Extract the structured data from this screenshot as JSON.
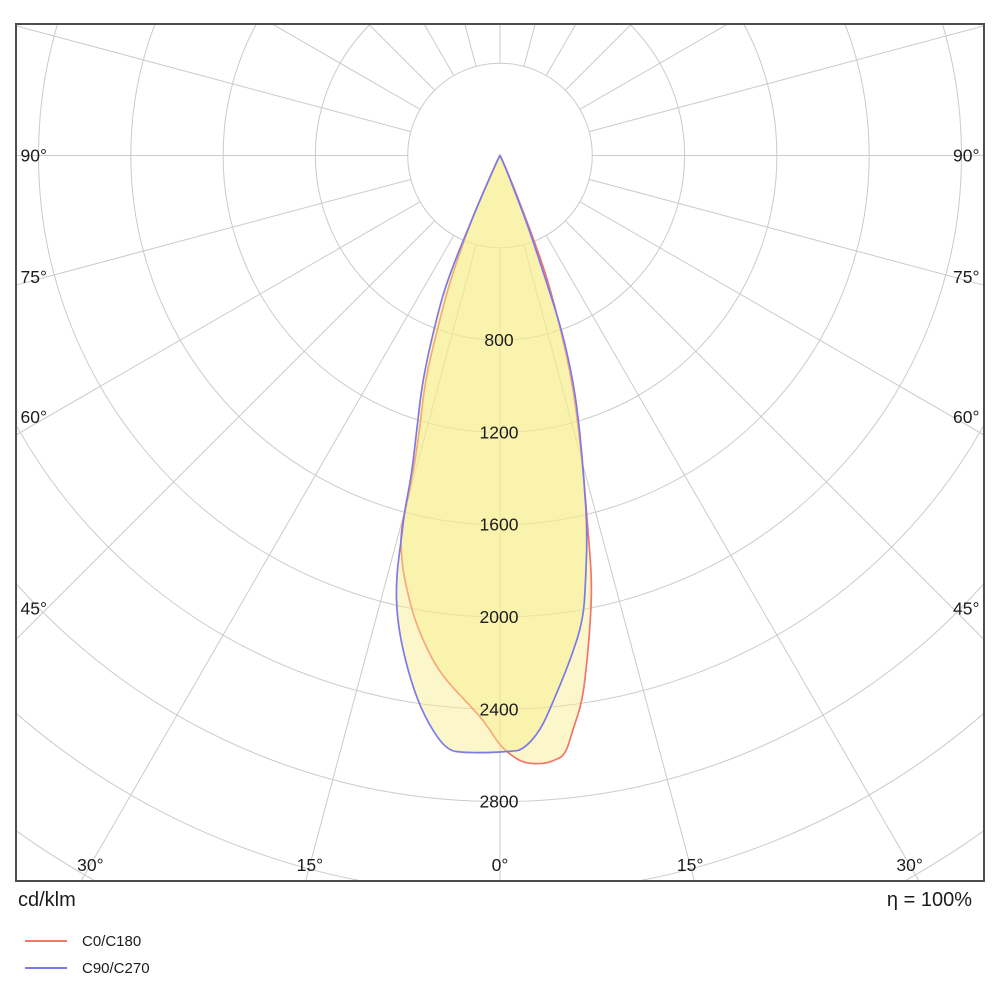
{
  "footer": {
    "unit": "cd/klm",
    "efficiency": "η = 100%"
  },
  "legend": {
    "items": [
      {
        "label": "C0/C180",
        "color": "#f4756b"
      },
      {
        "label": "C90/C270",
        "color": "#7c7ae8"
      }
    ]
  },
  "chart_data": {
    "type": "polar",
    "title": "",
    "units": "cd/klm",
    "efficiency": "η = 100%",
    "angle_step_deg": 15,
    "ring_step": 400,
    "max_ring": 3600,
    "labeled_rings": [
      "800",
      "1200",
      "1600",
      "2000",
      "2400",
      "2800"
    ],
    "side_angle_labels": [
      {
        "deg": 90,
        "label": "90°"
      },
      {
        "deg": 75,
        "label": "75°"
      },
      {
        "deg": 60,
        "label": "60°"
      },
      {
        "deg": 45,
        "label": "45°"
      }
    ],
    "bottom_angle_labels": [
      {
        "deg": -30,
        "label": "30°"
      },
      {
        "deg": -15,
        "label": "15°"
      },
      {
        "deg": 0,
        "label": "0°"
      },
      {
        "deg": 15,
        "label": "15°"
      },
      {
        "deg": 30,
        "label": "30°"
      }
    ],
    "colors": {
      "grid": "#cbcbcb",
      "frame": "#4d4d4d",
      "fill": "rgba(246,238,140,0.45)",
      "text": "#1c1c1c",
      "c0": "#f4756b",
      "c90": "#7c7ae8"
    },
    "series": [
      {
        "name": "C0/C180",
        "color": "#f4756b",
        "points": [
          [
            -90,
            0
          ],
          [
            -75,
            0
          ],
          [
            -60,
            0
          ],
          [
            -45,
            0
          ],
          [
            -34,
            0
          ],
          [
            -30,
            8
          ],
          [
            -27,
            25
          ],
          [
            -25,
            95
          ],
          [
            -24,
            300
          ],
          [
            -21.8,
            585
          ],
          [
            -19.8,
            805
          ],
          [
            -18.4,
            1030
          ],
          [
            -16.3,
            1240
          ],
          [
            -15.1,
            1480
          ],
          [
            -14.9,
            1680
          ],
          [
            -13.6,
            1810
          ],
          [
            -12.6,
            1890
          ],
          [
            -10.4,
            2050
          ],
          [
            -7.6,
            2210
          ],
          [
            -5.5,
            2300
          ],
          [
            -3.7,
            2365
          ],
          [
            -2,
            2435
          ],
          [
            -1,
            2490
          ],
          [
            0,
            2557
          ],
          [
            1.2,
            2605
          ],
          [
            2.4,
            2637
          ],
          [
            4.2,
            2643
          ],
          [
            5,
            2633
          ],
          [
            6.2,
            2615
          ],
          [
            7.2,
            2512
          ],
          [
            8.6,
            2390
          ],
          [
            9.8,
            2220
          ],
          [
            11,
            2055
          ],
          [
            12.2,
            1885
          ],
          [
            13.2,
            1670
          ],
          [
            14.5,
            1455
          ],
          [
            16,
            1240
          ],
          [
            17.7,
            1025
          ],
          [
            19.2,
            805
          ],
          [
            21,
            580
          ],
          [
            22,
            380
          ],
          [
            23,
            180
          ],
          [
            24.5,
            70
          ],
          [
            26.5,
            15
          ],
          [
            30,
            0
          ],
          [
            45,
            0
          ],
          [
            60,
            0
          ],
          [
            75,
            0
          ],
          [
            90,
            0
          ]
        ]
      },
      {
        "name": "C90/C270",
        "color": "#7c7ae8",
        "points": [
          [
            -90,
            0
          ],
          [
            -75,
            0
          ],
          [
            -60,
            0
          ],
          [
            -45,
            0
          ],
          [
            -34,
            0
          ],
          [
            -30,
            8
          ],
          [
            -27,
            25
          ],
          [
            -25,
            90
          ],
          [
            -24,
            260
          ],
          [
            -23,
            590
          ],
          [
            -21,
            790
          ],
          [
            -19,
            1030
          ],
          [
            -17,
            1230
          ],
          [
            -15.5,
            1430
          ],
          [
            -15,
            1600
          ],
          [
            -14.5,
            1700
          ],
          [
            -13.8,
            1890
          ],
          [
            -12.5,
            2060
          ],
          [
            -10.6,
            2230
          ],
          [
            -8.6,
            2390
          ],
          [
            -6.7,
            2510
          ],
          [
            -5,
            2588
          ],
          [
            -3.4,
            2592
          ],
          [
            -1,
            2588
          ],
          [
            1,
            2583
          ],
          [
            2.2,
            2578
          ],
          [
            4,
            2500
          ],
          [
            5.6,
            2375
          ],
          [
            7.9,
            2210
          ],
          [
            10.1,
            2050
          ],
          [
            11.4,
            1880
          ],
          [
            13.1,
            1670
          ],
          [
            14.5,
            1455
          ],
          [
            16.2,
            1240
          ],
          [
            18,
            1025
          ],
          [
            19.5,
            805
          ],
          [
            20.2,
            580
          ],
          [
            21.5,
            350
          ],
          [
            22.5,
            160
          ],
          [
            24,
            60
          ],
          [
            26,
            15
          ],
          [
            30,
            0
          ],
          [
            45,
            0
          ],
          [
            60,
            0
          ],
          [
            75,
            0
          ],
          [
            90,
            0
          ]
        ]
      }
    ]
  }
}
